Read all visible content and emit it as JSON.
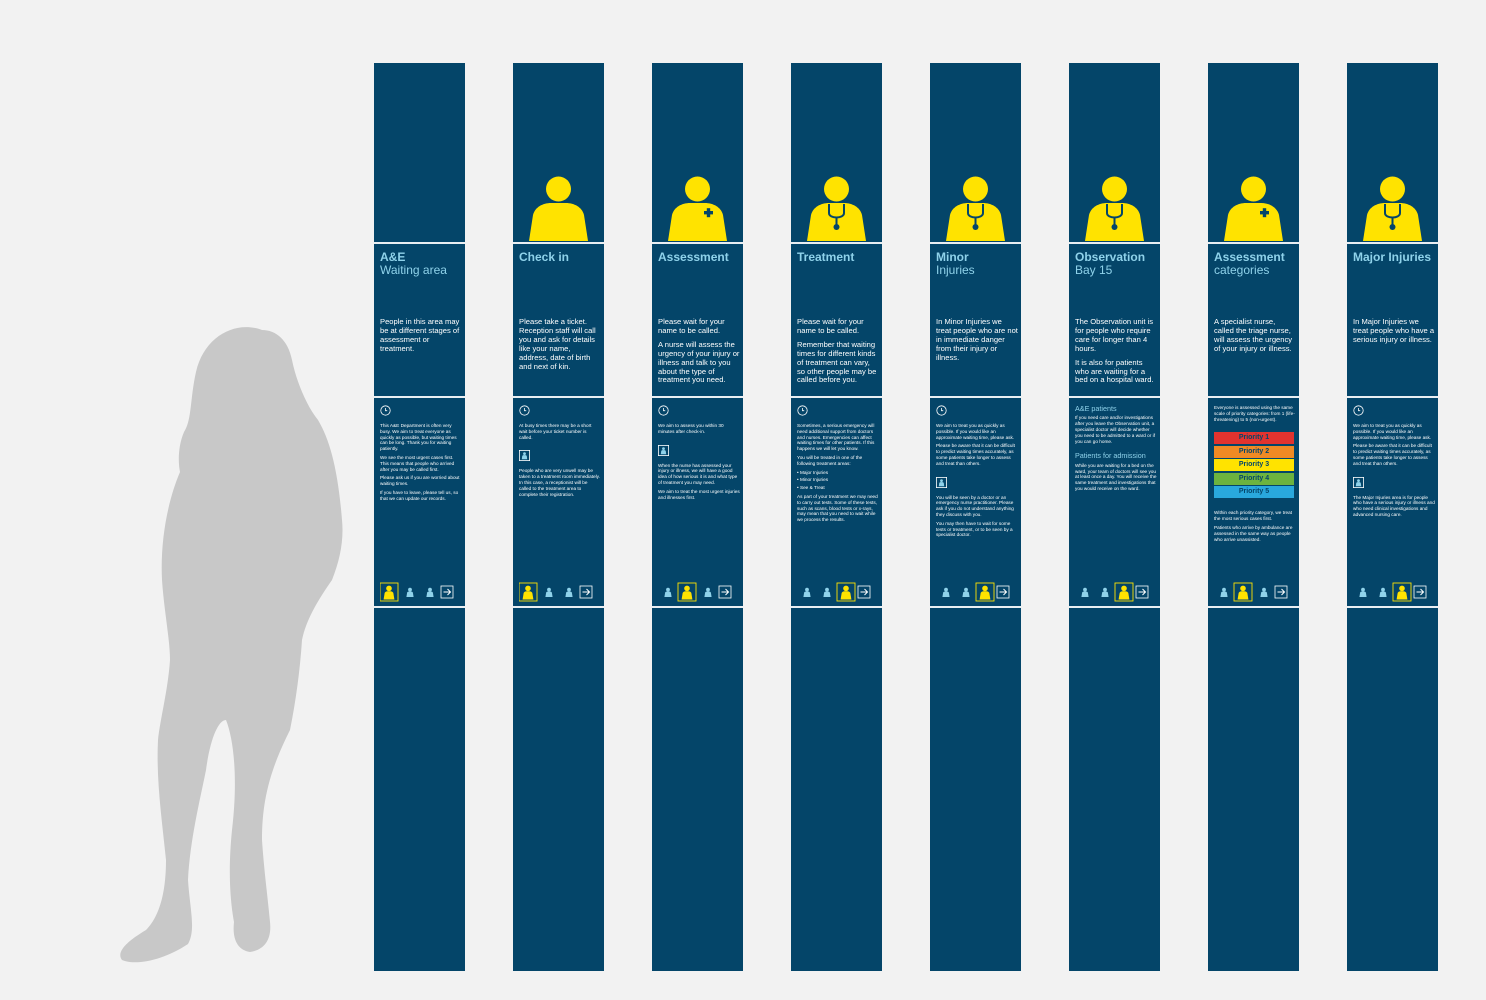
{
  "colors": {
    "background": "#f2f2f2",
    "panel": "#044569",
    "title": "#8fd2ea",
    "figure": "#ffe300",
    "silhouette": "#c8c8c8",
    "priority": [
      "#e2332f",
      "#f08a24",
      "#ffe300",
      "#6cb33f",
      "#29a8dd"
    ]
  },
  "panels": [
    {
      "title": "A&E",
      "subtitle": "Waiting area",
      "figure": "none",
      "highlight": 0,
      "intro": [
        "People in this area may be at different stages of assessment or treatment."
      ],
      "details": [
        {
          "type": "icon",
          "name": "clock"
        },
        {
          "type": "p",
          "text": "This A&E Department is often very busy. We aim to treat everyone as quickly as possible, but waiting times can be long. Thank you for waiting patiently."
        },
        {
          "type": "p",
          "text": "We see the most urgent cases first. This means that people who arrived after you may be called first."
        },
        {
          "type": "p",
          "text": "Please ask us if you are worried about waiting times."
        },
        {
          "type": "p",
          "text": "If you have to leave, please tell us, so that we can update our records."
        }
      ]
    },
    {
      "title": "Check in",
      "subtitle": "",
      "figure": "plain",
      "highlight": 0,
      "intro": [
        "Please take a ticket. Reception staff will call you and ask for details like your name, address, date of birth and next of kin."
      ],
      "details": [
        {
          "type": "icon",
          "name": "clock"
        },
        {
          "type": "p",
          "text": "At busy times there may be a short wait before your ticket number is called."
        },
        {
          "type": "icon",
          "name": "person"
        },
        {
          "type": "p",
          "text": "People who are very unwell may be taken to a treatment room immediately. In this case, a receptionist will be called to the treatment area to complete their registration."
        }
      ]
    },
    {
      "title": "Assessment",
      "subtitle": "",
      "figure": "cross",
      "highlight": 1,
      "intro": [
        "Please wait for your name to be called.",
        "A nurse will assess the urgency of your injury or illness and talk to you about the type of treatment you need."
      ],
      "details": [
        {
          "type": "icon",
          "name": "clock"
        },
        {
          "type": "p",
          "text": "We aim to assess you within 30 minutes after check-in."
        },
        {
          "type": "icon",
          "name": "person"
        },
        {
          "type": "p",
          "text": "When the nurse has assessed your injury or illness, we will have a good idea of how serious it is and what type of treatment you may need."
        },
        {
          "type": "p",
          "text": "We aim to treat the most urgent injuries and illnesses first."
        }
      ]
    },
    {
      "title": "Treatment",
      "subtitle": "",
      "figure": "stethoscope",
      "highlight": 2,
      "intro": [
        "Please wait for your name to be called.",
        "Remember that waiting times for different kinds of treatment can vary, so other people may be called before you."
      ],
      "details": [
        {
          "type": "icon",
          "name": "clock"
        },
        {
          "type": "p",
          "text": "Sometimes, a serious emergency will need additional support from doctors and nurses. Emergencies can affect waiting times for other patients. If this happens we will let you know."
        },
        {
          "type": "p",
          "text": "You will be treated in one of the following treatment areas:"
        },
        {
          "type": "list",
          "items": [
            "Major Injuries",
            "Minor Injuries",
            "See & Treat"
          ]
        },
        {
          "type": "p",
          "text": "As part of your treatment we may need to carry out tests. Some of these tests, such as scans, blood tests or x-rays, may mean that you need to wait while we process the results."
        }
      ]
    },
    {
      "title": "Minor",
      "subtitle": "Injuries",
      "figure": "stethoscope",
      "highlight": 2,
      "intro": [
        "In Minor Injuries we treat people who are not in immediate danger from their injury or illness."
      ],
      "details": [
        {
          "type": "icon",
          "name": "clock"
        },
        {
          "type": "p",
          "text": "We aim to treat you as quickly as possible. If you would like an approximate waiting time, please ask."
        },
        {
          "type": "p",
          "text": "Please be aware that it can be difficult to predict waiting times accurately, as some patients take longer to assess and treat than others."
        },
        {
          "type": "icon",
          "name": "person"
        },
        {
          "type": "p",
          "text": "You will be seen by a doctor or an emergency nurse practitioner. Please ask if you do not understand anything they discuss with you."
        },
        {
          "type": "p",
          "text": "You may then have to wait for some tests or treatment, or to be seen by a specialist doctor."
        }
      ]
    },
    {
      "title": "Observation",
      "subtitle": "Bay 15",
      "figure": "stethoscope",
      "highlight": 2,
      "intro": [
        "The Observation unit is for people who require care for longer than 4 hours.",
        "It is also for patients who are waiting for a bed on a hospital ward."
      ],
      "details": [
        {
          "type": "h",
          "text": "A&E patients"
        },
        {
          "type": "p",
          "text": "If you need care and/or investigations after you leave the Observation unit, a specialist doctor will decide whether you need to be admitted to a ward or if you can go home."
        },
        {
          "type": "h",
          "text": "Patients for admission"
        },
        {
          "type": "p",
          "text": "While you are waiting for a bed on the ward, your team of doctors will see you at least once a day. You will receive the same treatment and investigations that you would receive on the ward."
        }
      ]
    },
    {
      "title": "Assessment",
      "subtitle": "categories",
      "figure": "cross",
      "highlight": 1,
      "intro": [
        "A specialist nurse, called the triage nurse, will assess the urgency of your injury or illness."
      ],
      "details": [
        {
          "type": "p",
          "text": "Everyone is assessed using the same scale of priority categories: from 1 (life-threatening) to 5 (non-urgent)."
        },
        {
          "type": "priority",
          "items": [
            "Priority 1",
            "Priority 2",
            "Priority 3",
            "Priority 4",
            "Priority 5"
          ]
        },
        {
          "type": "p",
          "text": "Within each priority category, we treat the most serious cases first."
        },
        {
          "type": "p",
          "text": "Patients who arrive by ambulance are assessed in the same way as people who arrive unassisted."
        }
      ]
    },
    {
      "title": "Major Injuries",
      "subtitle": "",
      "figure": "stethoscope",
      "highlight": 2,
      "intro": [
        "In Major Injuries we treat people who have a serious injury or illness."
      ],
      "details": [
        {
          "type": "icon",
          "name": "clock"
        },
        {
          "type": "p",
          "text": "We aim to treat you as quickly as possible. If you would like an approximate waiting time, please ask."
        },
        {
          "type": "p",
          "text": "Please be aware that it can be difficult to predict waiting times accurately, as some patients take longer to assess and treat than others."
        },
        {
          "type": "icon",
          "name": "person"
        },
        {
          "type": "p",
          "text": "The Major Injuries area is for people who have a serious injury or illness and who need clinical investigations and advanced nursing care."
        }
      ]
    }
  ]
}
